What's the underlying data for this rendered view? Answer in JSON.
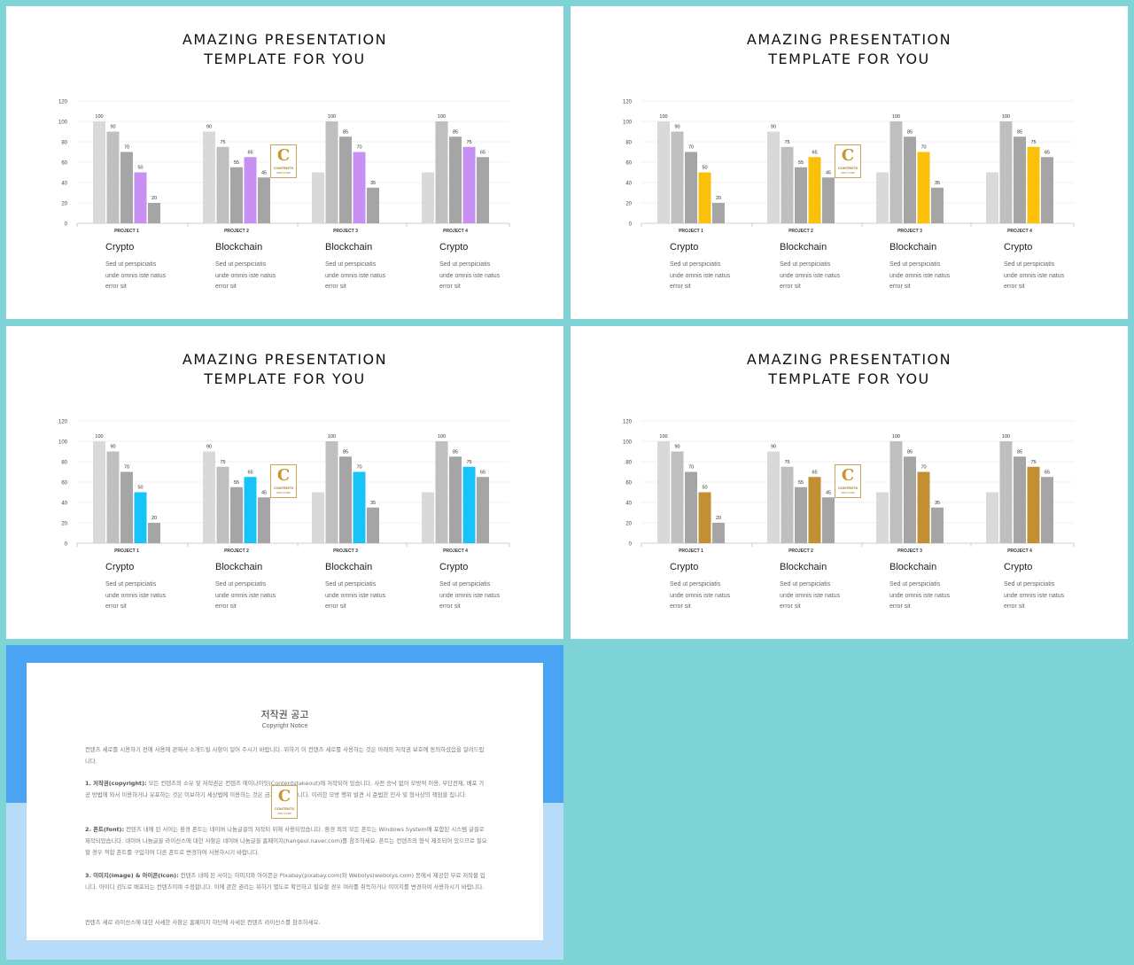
{
  "slides": [
    {
      "title_line1": "AMAZING PRESENTATION",
      "title_line2": "TEMPLATE FOR YOU",
      "accent": "#c890f2",
      "logo": {
        "letter": "C",
        "text": "CONTENTS",
        "sub": "ADD CORP"
      },
      "projects": [
        {
          "heading": "Crypto",
          "desc": [
            "Sed ut perspiciatis",
            "unde omnis iste natus",
            "error sit"
          ]
        },
        {
          "heading": "Blockchain",
          "desc": [
            "Sed ut perspiciatis",
            "unde omnis iste natus",
            "error sit"
          ]
        },
        {
          "heading": "Blockchain",
          "desc": [
            "Sed ut perspiciatis",
            "unde omnis iste natus",
            "error sit"
          ]
        },
        {
          "heading": "Crypto",
          "desc": [
            "Sed ut perspiciatis",
            "unde omnis iste natus",
            "error sit"
          ]
        }
      ]
    },
    {
      "title_line1": "AMAZING PRESENTATION",
      "title_line2": "TEMPLATE FOR YOU",
      "accent": "#fbc10a",
      "logo": {
        "letter": "C",
        "text": "CONTENTS",
        "sub": "ADD CORP"
      },
      "projects": [
        {
          "heading": "Crypto",
          "desc": [
            "Sed ut perspiciatis",
            "unde omnis iste natus",
            "error sit"
          ]
        },
        {
          "heading": "Blockchain",
          "desc": [
            "Sed ut perspiciatis",
            "unde omnis iste natus",
            "error sit"
          ]
        },
        {
          "heading": "Blockchain",
          "desc": [
            "Sed ut perspiciatis",
            "unde omnis iste natus",
            "error sit"
          ]
        },
        {
          "heading": "Crypto",
          "desc": [
            "Sed ut perspiciatis",
            "unde omnis iste natus",
            "error sit"
          ]
        }
      ]
    },
    {
      "title_line1": "AMAZING PRESENTATION",
      "title_line2": "TEMPLATE FOR YOU",
      "accent": "#17c3f7",
      "logo": {
        "letter": "C",
        "text": "CONTENTS",
        "sub": "ADD CORP"
      },
      "projects": [
        {
          "heading": "Crypto",
          "desc": [
            "Sed ut perspiciatis",
            "unde omnis iste natus",
            "error sit"
          ]
        },
        {
          "heading": "Blockchain",
          "desc": [
            "Sed ut perspiciatis",
            "unde omnis iste natus",
            "error sit"
          ]
        },
        {
          "heading": "Blockchain",
          "desc": [
            "Sed ut perspiciatis",
            "unde omnis iste natus",
            "error sit"
          ]
        },
        {
          "heading": "Crypto",
          "desc": [
            "Sed ut perspiciatis",
            "unde omnis iste natus",
            "error sit"
          ]
        }
      ]
    },
    {
      "title_line1": "AMAZING PRESENTATION",
      "title_line2": "TEMPLATE FOR YOU",
      "accent": "#c28f33",
      "logo": {
        "letter": "C",
        "text": "CONTENTS",
        "sub": "ADD CORP"
      },
      "projects": [
        {
          "heading": "Crypto",
          "desc": [
            "Sed ut perspiciatis",
            "unde omnis iste natus",
            "error sit"
          ]
        },
        {
          "heading": "Blockchain",
          "desc": [
            "Sed ut perspiciatis",
            "unde omnis iste natus",
            "error sit"
          ]
        },
        {
          "heading": "Blockchain",
          "desc": [
            "Sed ut perspiciatis",
            "unde omnis iste natus",
            "error sit"
          ]
        },
        {
          "heading": "Crypto",
          "desc": [
            "Sed ut perspiciatis",
            "unde omnis iste natus",
            "error sit"
          ]
        }
      ]
    }
  ],
  "chart_data": {
    "type": "bar",
    "categories": [
      "PROJECT 1",
      "PROJECT 2",
      "PROJECT 3",
      "PROJECT 4"
    ],
    "bar_colors": [
      "#d9d9d9",
      "#bfbfbf",
      "#a5a5a5",
      "accent",
      "#a5a5a5"
    ],
    "groups": [
      [
        {
          "v": 100,
          "label": "100"
        },
        {
          "v": 90,
          "label": "90"
        },
        {
          "v": 70,
          "label": "70"
        },
        {
          "v": 50,
          "label": "50"
        },
        {
          "v": 20,
          "label": "20"
        }
      ],
      [
        {
          "v": 90,
          "label": "90"
        },
        {
          "v": 75,
          "label": "75"
        },
        {
          "v": 55,
          "label": "55"
        },
        {
          "v": 65,
          "label": "65"
        },
        {
          "v": 45,
          "label": "45"
        }
      ],
      [
        {
          "v": 50,
          "label": ""
        },
        {
          "v": 100,
          "label": "100"
        },
        {
          "v": 85,
          "label": "85"
        },
        {
          "v": 70,
          "label": "70"
        },
        {
          "v": 35,
          "label": "35"
        }
      ],
      [
        {
          "v": 50,
          "label": ""
        },
        {
          "v": 100,
          "label": "100"
        },
        {
          "v": 85,
          "label": "85"
        },
        {
          "v": 75,
          "label": "75"
        },
        {
          "v": 65,
          "label": "65"
        }
      ]
    ],
    "y_ticks": [
      "0",
      "20",
      "40",
      "60",
      "80",
      "100",
      "120"
    ],
    "ylim": [
      0,
      120
    ],
    "grid": true,
    "legend": "none",
    "title": "",
    "xlabel": "",
    "ylabel": ""
  },
  "notice": {
    "title": "저작권 공고",
    "subtitle": "Copyright Notice",
    "logo": {
      "letter": "C",
      "text": "CONTENTS",
      "sub": "ADD CORP"
    },
    "intro": "컨텐츠 세로를 시용하기 전에 사용에 관해서 소개드릴 사항이 일어 주시기 바랍니다. 위하기 이 컨텐츠 세로를 사용하는 것은 아래의 저작권 보호에 동의하셨음을 알려드립니다.",
    "p1_head": "1. 저작권(copyright):",
    "p1": " 모든 컨텐츠의 소유 및 저작권은 컨텐츠 에이나이잇(Contentstakeout)에 저작되어 있습니다. 사전 승낙 없이 모방적 이용, 무단전재, 배포 가공 방법에 와서 이용하거나 유포하는 것은 이보하기 세상법에 이용하는 것은 금지되어 있습니다. 이러한 모방 행위 발견 시 준법한 민사 및 형사상의 책임을 집니다.",
    "p2_head": "2. 폰트(font):",
    "p2": " 컨텐츠 내에 된 서이는 환경 폰트는 네이버 나눔글꼴의 저작되 위해 사용되었습니다. 환경 외의 모든 폰트는 Windows System에 포함된 시스템 글꼴로 제작되었습니다. 네이버 나눔글꼴 라이선스에 대한 사항은 네이버 나눔글꼴 홈페이지(hangeul.naver.com)를 참조하세요. 폰트는 컨텐츠의 형식 제조되어 있으므로 필요할 경우 적합 폰트를 구입하여 다른 폰트로 변경하여 사용하시기 바랍니다.",
    "p3_head": "3. 이미지(image) & 아이콘(icon):",
    "p3": " 컨텐츠 내에 된 서이는 이미지와 아이콘은 Pixabay(pixabay.com)와 Webolys(webolys.com) 등에서 제공한 무료 저작물 입니다. 아이디 검도로 배포되는 컨텐츠이며 수정합니다. 이에 관한 권리는 위하기 별도로 확인하고 필요할 경우 여러를 취득하거나 이미지를 변경하여 사용하시기 바랍니다.",
    "footer": "컨텐츠 세로 라이선스에 대한 사세한 사항은 홈페이지 하단에 사세된 컨텐츠 라이선스를 참조하세요."
  }
}
